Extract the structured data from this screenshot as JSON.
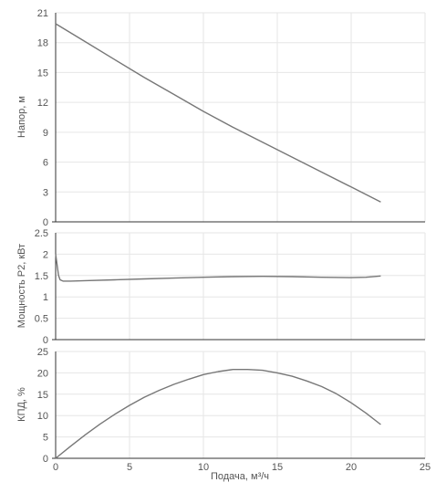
{
  "chart_data": [
    {
      "type": "line",
      "ylabel": "Напор, м",
      "xlim": [
        0,
        25
      ],
      "ylim": [
        0,
        21
      ],
      "x_ticks": [
        0,
        5,
        10,
        15,
        20,
        25
      ],
      "y_ticks": [
        0,
        3,
        6,
        9,
        12,
        15,
        18,
        21
      ],
      "grid": true,
      "series": [
        {
          "x": [
            0,
            2,
            4,
            6,
            8,
            10,
            12,
            14,
            16,
            18,
            20,
            22
          ],
          "y": [
            19.9,
            18.1,
            16.3,
            14.5,
            12.8,
            11.1,
            9.5,
            8.0,
            6.5,
            5.0,
            3.5,
            2.0
          ]
        }
      ]
    },
    {
      "type": "line",
      "ylabel": "Мощность P2, кВт",
      "xlim": [
        0,
        25
      ],
      "ylim": [
        0,
        2.5
      ],
      "x_ticks": [
        0,
        5,
        10,
        15,
        20,
        25
      ],
      "y_ticks": [
        0,
        0.5,
        1,
        1.5,
        2,
        2.5
      ],
      "y_tick_labels": [
        "0",
        "0.5",
        "1",
        "1.5",
        "2",
        "2.5"
      ],
      "grid": true,
      "series": [
        {
          "x": [
            0,
            0.1,
            0.2,
            0.3,
            0.5,
            1,
            2,
            4,
            6,
            8,
            10,
            12,
            14,
            16,
            18,
            20,
            21,
            22
          ],
          "y": [
            2.0,
            1.75,
            1.5,
            1.4,
            1.37,
            1.37,
            1.38,
            1.4,
            1.42,
            1.44,
            1.46,
            1.475,
            1.48,
            1.475,
            1.46,
            1.45,
            1.46,
            1.49
          ]
        }
      ]
    },
    {
      "type": "line",
      "ylabel": "КПД, %",
      "xlabel": "Подача, м³/ч",
      "xlim": [
        0,
        25
      ],
      "ylim": [
        0,
        25
      ],
      "x_ticks": [
        0,
        5,
        10,
        15,
        20,
        25
      ],
      "y_ticks": [
        0,
        5,
        10,
        15,
        20,
        25
      ],
      "grid": true,
      "series": [
        {
          "x": [
            0,
            1,
            2,
            3,
            4,
            5,
            6,
            7,
            8,
            9,
            10,
            11,
            12,
            13,
            14,
            15,
            16,
            17,
            18,
            19,
            20,
            21,
            22
          ],
          "y": [
            0,
            2.8,
            5.5,
            8.0,
            10.3,
            12.4,
            14.3,
            15.9,
            17.3,
            18.5,
            19.6,
            20.3,
            20.8,
            20.8,
            20.6,
            20.0,
            19.2,
            18.1,
            16.8,
            15.1,
            13.0,
            10.6,
            7.9
          ]
        }
      ]
    }
  ],
  "colors": {
    "line": "#777777",
    "grid": "#e6e6e6",
    "axis": "#333333",
    "text": "#555555"
  }
}
